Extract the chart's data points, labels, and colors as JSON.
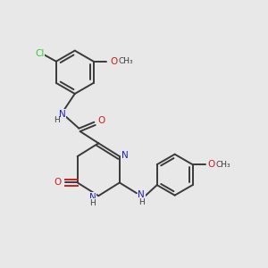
{
  "bg_color": "#e8e8e8",
  "bond_color": "#3a3a3a",
  "N_color": "#2020cc",
  "O_color": "#cc2020",
  "Cl_color": "#33cc33",
  "figsize": [
    3.0,
    3.0
  ],
  "dpi": 100,
  "xlim": [
    0,
    10
  ],
  "ylim": [
    0,
    10
  ]
}
